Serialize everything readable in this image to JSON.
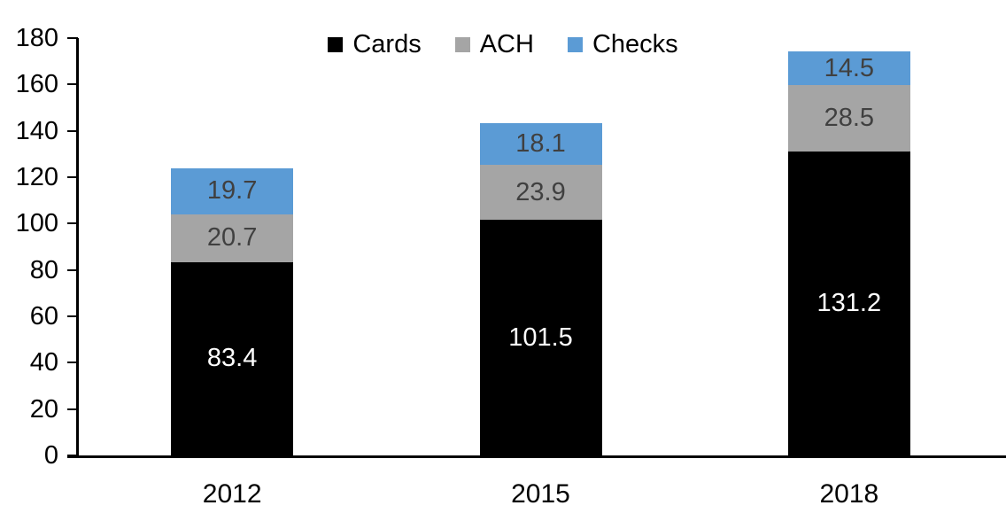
{
  "chart_data": {
    "type": "bar",
    "stacked": true,
    "title": "",
    "xlabel": "",
    "ylabel": "",
    "categories": [
      "2012",
      "2015",
      "2018"
    ],
    "series": [
      {
        "name": "Cards",
        "color": "#000000",
        "label_color": "#ffffff",
        "values": [
          83.4,
          101.5,
          131.2
        ]
      },
      {
        "name": "ACH",
        "color": "#a5a5a5",
        "label_color": "#404040",
        "values": [
          20.7,
          23.9,
          28.5
        ]
      },
      {
        "name": "Checks",
        "color": "#5b9bd5",
        "label_color": "#404040",
        "values": [
          19.7,
          18.1,
          14.5
        ]
      }
    ],
    "stack_totals": [
      123.8,
      143.5,
      174.2
    ],
    "ylim": [
      0,
      180
    ],
    "ytick_step": 20,
    "yticks": [
      0,
      20,
      40,
      60,
      80,
      100,
      120,
      140,
      160,
      180
    ],
    "grid": false,
    "legend_position": "top-center",
    "legend_entries": [
      "Cards",
      "ACH",
      "Checks"
    ],
    "data_labels_shown": true,
    "axis_color": "#000000"
  }
}
